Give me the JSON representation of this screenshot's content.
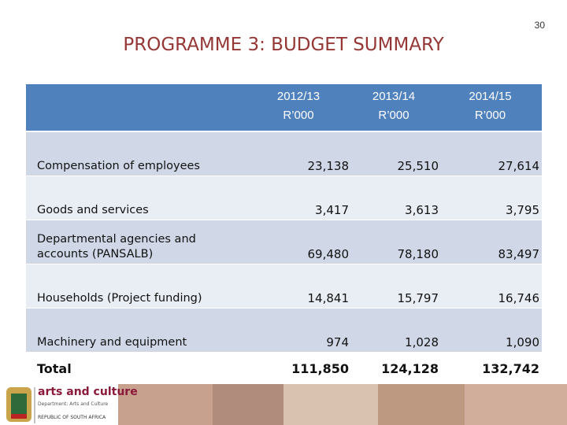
{
  "page_number": "30",
  "title": "PROGRAMME 3: BUDGET SUMMARY",
  "table": {
    "columns": [
      {
        "year": "2012/13",
        "unit": "R’000"
      },
      {
        "year": "2013/14",
        "unit": "R’000"
      },
      {
        "year": "2014/15",
        "unit": "R’000"
      }
    ],
    "rows": [
      {
        "label": "Compensation of employees",
        "values": [
          "23,138",
          "25,510",
          "27,614"
        ]
      },
      {
        "label": "Goods and services",
        "values": [
          "3,417",
          "3,613",
          "3,795"
        ]
      },
      {
        "label": "Departmental agencies and accounts (PANSALB)",
        "values": [
          "69,480",
          "78,180",
          "83,497"
        ]
      },
      {
        "label": "Households (Project funding)",
        "values": [
          "14,841",
          "15,797",
          "16,746"
        ]
      },
      {
        "label": "Machinery and equipment",
        "values": [
          "974",
          "1,028",
          "1,090"
        ]
      }
    ],
    "total": {
      "label": "Total",
      "values": [
        "111,850",
        "124,128",
        "132,742"
      ]
    }
  },
  "footer": {
    "brand": "arts and culture",
    "department": "Department: Arts and Culture",
    "country": "REPUBLIC OF SOUTH AFRICA"
  }
}
